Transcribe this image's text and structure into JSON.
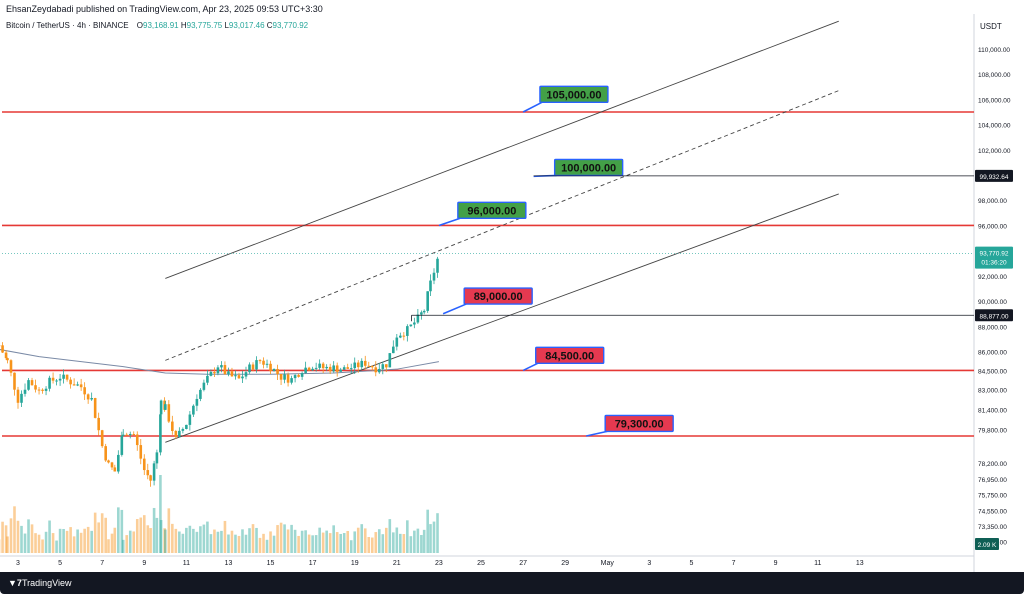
{
  "header": {
    "published_by": "EhsanZeydabadi published on TradingView.com, Apr 23, 2025 09:53 UTC+3:30"
  },
  "symbol": {
    "name": "Bitcoin / TetherUS · 4h · BINANCE",
    "open_label": "O",
    "open": "93,168.91",
    "high_label": "H",
    "high": "93,775.75",
    "low_label": "L",
    "low": "93,017.46",
    "close_label": "C",
    "close": "93,770.92"
  },
  "price_axis": {
    "currency": "USDT",
    "ticks": [
      "110,000.00",
      "108,000.00",
      "106,000.00",
      "104,000.00",
      "102,000.00",
      "98,000.00",
      "96,000.00",
      "92,000.00",
      "90,000.00",
      "88,000.00",
      "86,000.00",
      "84,500.00",
      "83,000.00",
      "81,400.00",
      "79,800.00",
      "78,200.00",
      "76,950.00",
      "75,750.00",
      "74,550.00",
      "73,350.00",
      "72,150.00"
    ],
    "last_price": "93,770.92",
    "countdown": "01:36:20",
    "marker_1": "99,932.64",
    "marker_2": "88,877.00",
    "volume_label": "2.09 K"
  },
  "time_axis": {
    "ticks": [
      "3",
      "5",
      "7",
      "9",
      "11",
      "13",
      "15",
      "17",
      "19",
      "21",
      "23",
      "25",
      "27",
      "29",
      "May",
      "3",
      "5",
      "7",
      "9",
      "11",
      "13"
    ]
  },
  "footer": {
    "brand": "TradingView"
  },
  "colors": {
    "up": "#26a69a",
    "down": "#f7931a",
    "level": "#e53935",
    "label_green": "#43a047",
    "label_red": "#e53950",
    "ma": "#7a8aa6"
  },
  "chart_data": {
    "type": "candlestick",
    "timeframe": "4h",
    "x_range": [
      "Apr 2",
      "May 14"
    ],
    "y_range": [
      71500,
      112000
    ],
    "horizontal_levels": [
      105000,
      96000,
      84500,
      79300
    ],
    "level_labels": [
      "105,000.00",
      "100,000.00",
      "96,000.00",
      "89,000.00",
      "84,500.00",
      "79,300.00"
    ],
    "close_path": [
      {
        "day": 2.1,
        "close": 86500
      },
      {
        "day": 2.5,
        "close": 85200
      },
      {
        "day": 3.0,
        "close": 82200
      },
      {
        "day": 3.5,
        "close": 83700
      },
      {
        "day": 4.0,
        "close": 82900
      },
      {
        "day": 4.5,
        "close": 83600
      },
      {
        "day": 5.0,
        "close": 84000
      },
      {
        "day": 5.5,
        "close": 83600
      },
      {
        "day": 6.0,
        "close": 83200
      },
      {
        "day": 6.5,
        "close": 82200
      },
      {
        "day": 7.0,
        "close": 78500
      },
      {
        "day": 7.3,
        "close": 77000
      },
      {
        "day": 7.6,
        "close": 76500
      },
      {
        "day": 8.0,
        "close": 79700
      },
      {
        "day": 8.5,
        "close": 79400
      },
      {
        "day": 9.0,
        "close": 76600
      },
      {
        "day": 9.3,
        "close": 75800
      },
      {
        "day": 9.6,
        "close": 78000
      },
      {
        "day": 9.8,
        "close": 82000
      },
      {
        "day": 10.0,
        "close": 81500
      },
      {
        "day": 10.5,
        "close": 79000
      },
      {
        "day": 11.0,
        "close": 80300
      },
      {
        "day": 11.5,
        "close": 82500
      },
      {
        "day": 12.0,
        "close": 83800
      },
      {
        "day": 12.5,
        "close": 84900
      },
      {
        "day": 13.0,
        "close": 84100
      },
      {
        "day": 13.5,
        "close": 83800
      },
      {
        "day": 14.0,
        "close": 84700
      },
      {
        "day": 14.5,
        "close": 85300
      },
      {
        "day": 15.0,
        "close": 84800
      },
      {
        "day": 15.5,
        "close": 84000
      },
      {
        "day": 16.0,
        "close": 83800
      },
      {
        "day": 16.5,
        "close": 84600
      },
      {
        "day": 17.0,
        "close": 84900
      },
      {
        "day": 17.5,
        "close": 84700
      },
      {
        "day": 18.0,
        "close": 84700
      },
      {
        "day": 18.5,
        "close": 84600
      },
      {
        "day": 19.0,
        "close": 84800
      },
      {
        "day": 19.5,
        "close": 85100
      },
      {
        "day": 20.0,
        "close": 84700
      },
      {
        "day": 20.5,
        "close": 85000
      },
      {
        "day": 21.0,
        "close": 87300
      },
      {
        "day": 21.5,
        "close": 87700
      },
      {
        "day": 22.0,
        "close": 88600
      },
      {
        "day": 22.3,
        "close": 89300
      },
      {
        "day": 22.6,
        "close": 91400
      },
      {
        "day": 23.0,
        "close": 93700
      }
    ],
    "moving_average": [
      {
        "day": 2.0,
        "value": 86200
      },
      {
        "day": 4.0,
        "value": 85600
      },
      {
        "day": 6.0,
        "value": 85200
      },
      {
        "day": 8.0,
        "value": 84800
      },
      {
        "day": 10.0,
        "value": 84300
      },
      {
        "day": 12.0,
        "value": 84200
      },
      {
        "day": 15.0,
        "value": 84200
      },
      {
        "day": 18.0,
        "value": 84300
      },
      {
        "day": 21.0,
        "value": 84600
      },
      {
        "day": 23.0,
        "value": 85200
      }
    ],
    "trend_lines": [
      {
        "style": "solid",
        "from": {
          "day": 10.0,
          "price": 91800
        },
        "to": {
          "day": 42.0,
          "price": 112200
        }
      },
      {
        "style": "solid",
        "from": {
          "day": 10.0,
          "price": 78800
        },
        "to": {
          "day": 42.0,
          "price": 98500
        }
      },
      {
        "style": "dashed",
        "from": {
          "day": 10.0,
          "price": 85300
        },
        "to": {
          "day": 42.0,
          "price": 106700
        }
      }
    ],
    "volume": {
      "last": "2.09 K"
    }
  }
}
